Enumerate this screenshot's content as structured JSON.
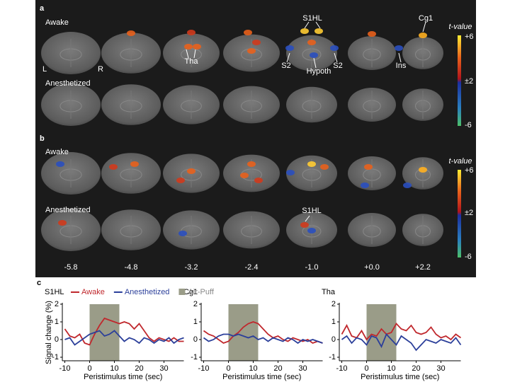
{
  "panel_a": {
    "label": "a",
    "rows": [
      "Awake",
      "Anesthetized"
    ],
    "orientation": [
      "L",
      "R"
    ],
    "annotations": [
      "S1HL",
      "Cg1",
      "Tha",
      "S2",
      "Hypoth",
      "S2",
      "Ins"
    ],
    "colorbar": {
      "title": "t-value",
      "labels": [
        "+6",
        "±2",
        "-6"
      ]
    }
  },
  "panel_b": {
    "label": "b",
    "rows": [
      "Awake",
      "Anesthetized"
    ],
    "annotations": [
      "S1HL"
    ],
    "colorbar": {
      "title": "t-value",
      "labels": [
        "+6",
        "±2",
        "-6"
      ]
    },
    "slice_coordinates": [
      "-5.8",
      "-4.8",
      "-3.2",
      "-2.4",
      "-1.0",
      "+0.0",
      "+2.2"
    ]
  },
  "panel_c": {
    "label": "c",
    "legend_air_puff": "Air-Puff",
    "air_puff_color": "#9a9c88"
  },
  "chart_data": [
    {
      "type": "line",
      "title": "S1HL",
      "xlabel": "Peristimulus time (sec)",
      "ylabel": "Signal change (%)",
      "x": [
        -10,
        -8,
        -6,
        -4,
        -2,
        0,
        2,
        4,
        6,
        8,
        10,
        12,
        14,
        16,
        18,
        20,
        22,
        24,
        26,
        28,
        30,
        32,
        34,
        36,
        38
      ],
      "series": [
        {
          "name": "Awake",
          "color": "#c0282d",
          "values": [
            0.6,
            0.2,
            0.1,
            0.3,
            -0.2,
            -0.3,
            0.3,
            0.8,
            1.2,
            1.1,
            1.0,
            0.9,
            1.0,
            0.9,
            0.6,
            0.9,
            0.5,
            0.1,
            -0.1,
            0.1,
            0.0,
            -0.1,
            0.1,
            -0.1,
            -0.1
          ]
        },
        {
          "name": "Anesthetized",
          "color": "#2b3f9a",
          "values": [
            0.0,
            0.1,
            -0.3,
            -0.1,
            0.1,
            0.3,
            0.4,
            0.5,
            0.2,
            0.3,
            0.5,
            0.2,
            -0.1,
            0.1,
            0.0,
            -0.2,
            0.1,
            0.0,
            -0.2,
            0.0,
            -0.1,
            0.1,
            -0.2,
            0.0,
            0.1
          ]
        }
      ],
      "air_puff": [
        0,
        12
      ],
      "xlim": [
        -11,
        38
      ],
      "ylim": [
        -1.2,
        2
      ],
      "xticks": [
        -10,
        0,
        10,
        20,
        30
      ],
      "yticks": [
        -1,
        0,
        1,
        2
      ]
    },
    {
      "type": "line",
      "title": "Cg1",
      "xlabel": "Peristimulus time (sec)",
      "x": [
        -10,
        -8,
        -6,
        -4,
        -2,
        0,
        2,
        4,
        6,
        8,
        10,
        12,
        14,
        16,
        18,
        20,
        22,
        24,
        26,
        28,
        30,
        32,
        34,
        36,
        38
      ],
      "series": [
        {
          "name": "Awake",
          "color": "#c0282d",
          "values": [
            0.5,
            0.3,
            0.2,
            0.0,
            -0.2,
            -0.1,
            0.2,
            0.4,
            0.7,
            0.9,
            1.0,
            0.9,
            0.6,
            0.3,
            0.1,
            0.2,
            0.0,
            -0.1,
            0.1,
            0.0,
            -0.1,
            0.0,
            -0.2,
            -0.1,
            -0.2
          ]
        },
        {
          "name": "Anesthetized",
          "color": "#2b3f9a",
          "values": [
            0.1,
            -0.1,
            0.0,
            0.2,
            0.3,
            0.3,
            0.2,
            0.3,
            0.2,
            0.1,
            0.2,
            0.0,
            0.1,
            -0.1,
            0.1,
            0.0,
            -0.1,
            0.1,
            0.0,
            -0.2,
            0.0,
            -0.1,
            0.0,
            -0.1,
            -0.2
          ]
        }
      ],
      "air_puff": [
        0,
        12
      ],
      "xlim": [
        -11,
        38
      ],
      "ylim": [
        -1.2,
        2
      ],
      "xticks": [
        -10,
        0,
        10,
        20,
        30
      ],
      "yticks": [
        -1,
        0,
        1,
        2
      ]
    },
    {
      "type": "line",
      "title": "Tha",
      "xlabel": "Peristimulus time (sec)",
      "x": [
        -10,
        -8,
        -6,
        -4,
        -2,
        0,
        2,
        4,
        6,
        8,
        10,
        12,
        14,
        16,
        18,
        20,
        22,
        24,
        26,
        28,
        30,
        32,
        34,
        36,
        38
      ],
      "series": [
        {
          "name": "Awake",
          "color": "#c0282d",
          "values": [
            0.3,
            0.8,
            0.2,
            0.1,
            0.5,
            0.0,
            0.3,
            0.2,
            0.6,
            0.3,
            0.4,
            0.9,
            0.6,
            0.5,
            0.8,
            0.4,
            0.3,
            0.4,
            0.7,
            0.3,
            0.1,
            0.2,
            0.0,
            0.3,
            0.1
          ]
        },
        {
          "name": "Anesthetized",
          "color": "#2b3f9a",
          "values": [
            0.0,
            0.2,
            -0.2,
            0.1,
            0.0,
            -0.3,
            0.2,
            0.1,
            -0.4,
            0.3,
            0.0,
            -0.3,
            0.2,
            0.0,
            -0.2,
            -0.6,
            -0.3,
            0.0,
            -0.1,
            -0.2,
            0.0,
            -0.1,
            -0.2,
            0.1,
            -0.3
          ]
        }
      ],
      "air_puff": [
        0,
        12
      ],
      "xlim": [
        -11,
        38
      ],
      "ylim": [
        -1.2,
        2
      ],
      "xticks": [
        -10,
        0,
        10,
        20,
        30
      ],
      "yticks": [
        -1,
        0,
        1,
        2
      ]
    }
  ]
}
